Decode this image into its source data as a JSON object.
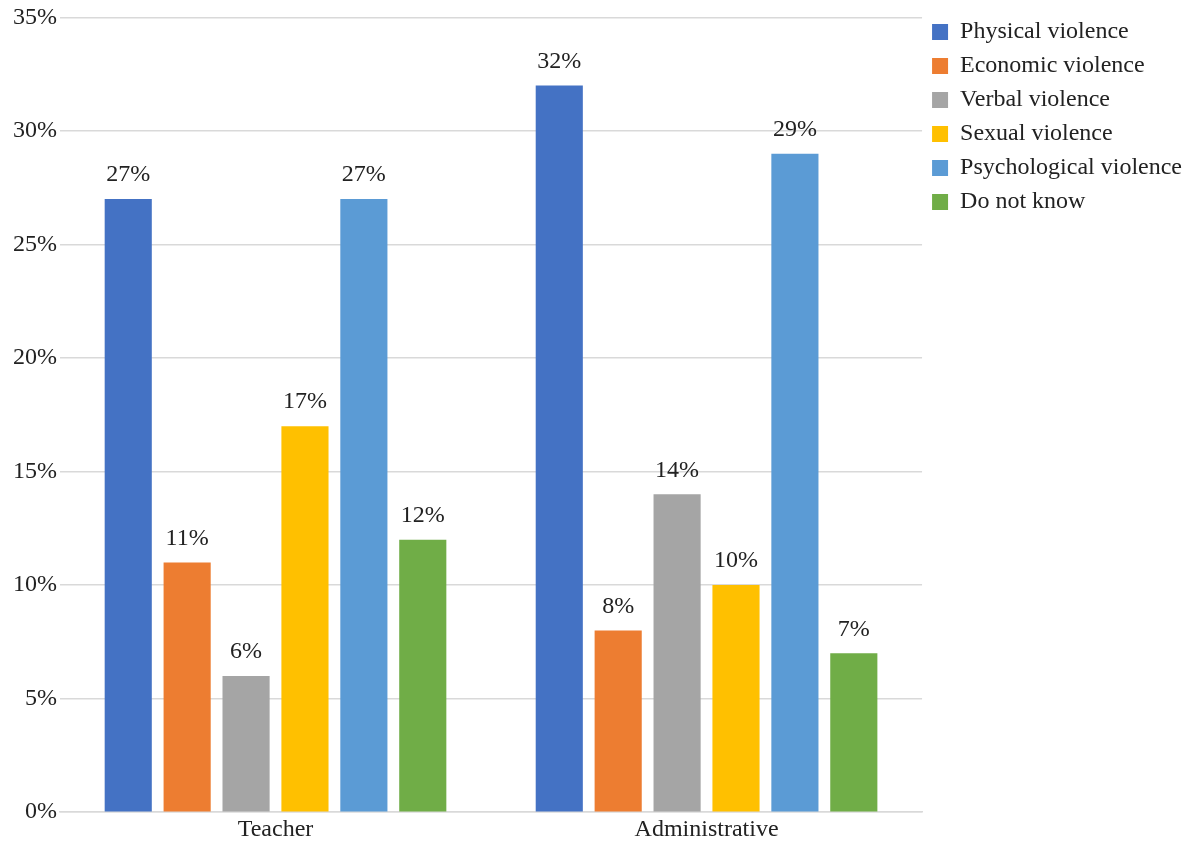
{
  "chart_data": {
    "type": "bar",
    "categories": [
      "Teacher",
      "Administrative"
    ],
    "series": [
      {
        "name": "Physical violence",
        "color": "#4472c4",
        "values": [
          27,
          32
        ],
        "value_labels": [
          "27%",
          "32%"
        ]
      },
      {
        "name": "Economic violence",
        "color": "#ed7d31",
        "values": [
          11,
          8
        ],
        "value_labels": [
          "11%",
          "8%"
        ]
      },
      {
        "name": "Verbal violence",
        "color": "#a5a5a5",
        "values": [
          6,
          14
        ],
        "value_labels": [
          "6%",
          "14%"
        ]
      },
      {
        "name": "Sexual violence",
        "color": "#ffc000",
        "values": [
          17,
          10
        ],
        "value_labels": [
          "17%",
          "10%"
        ]
      },
      {
        "name": "Psychological violence",
        "color": "#5b9bd5",
        "values": [
          27,
          29
        ],
        "value_labels": [
          "27%",
          "29%"
        ]
      },
      {
        "name": "Do not know",
        "color": "#70ad47",
        "values": [
          12,
          7
        ],
        "value_labels": [
          "12%",
          "7%"
        ]
      }
    ],
    "ylim": [
      0,
      35
    ],
    "yticks": [
      {
        "value": 0,
        "label": "0%"
      },
      {
        "value": 5,
        "label": "5%"
      },
      {
        "value": 10,
        "label": "10%"
      },
      {
        "value": 15,
        "label": "15%"
      },
      {
        "value": 20,
        "label": "20%"
      },
      {
        "value": 25,
        "label": "25%"
      },
      {
        "value": 30,
        "label": "30%"
      },
      {
        "value": 35,
        "label": "35%"
      }
    ],
    "grid": "y",
    "legend": "top right"
  }
}
